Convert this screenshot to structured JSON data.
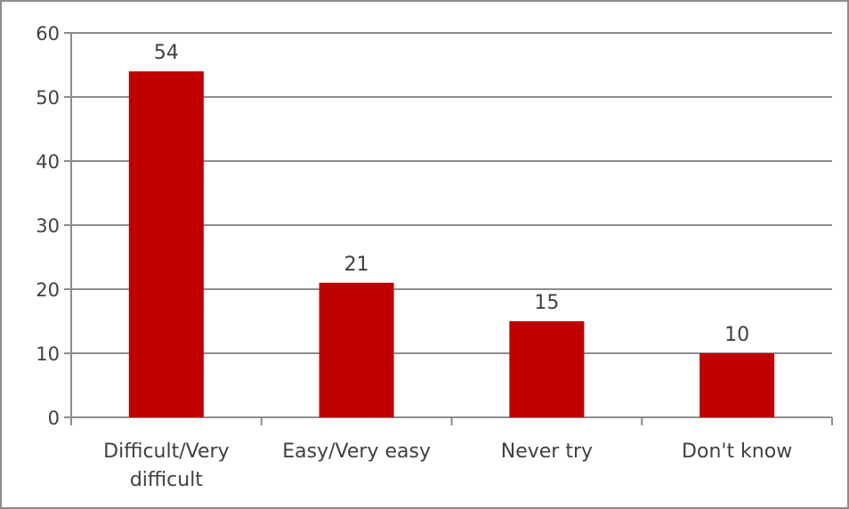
{
  "chart_data": {
    "type": "bar",
    "title": "",
    "xlabel": "",
    "ylabel": "",
    "categories": [
      [
        "Difficult/Very",
        "difficult"
      ],
      [
        "Easy/Very easy"
      ],
      [
        "Never try"
      ],
      [
        "Don't know"
      ]
    ],
    "values": [
      54,
      21,
      15,
      10
    ],
    "data_labels": [
      "54",
      "21",
      "15",
      "10"
    ],
    "ylim": [
      0,
      60
    ],
    "yticks": [
      0,
      10,
      20,
      30,
      40,
      50,
      60
    ],
    "grid": true,
    "legend": "none",
    "colors": {
      "bar": "#c00000",
      "grid": "#8c8c8c",
      "axis": "#8c8c8c",
      "text": "#404040"
    }
  }
}
